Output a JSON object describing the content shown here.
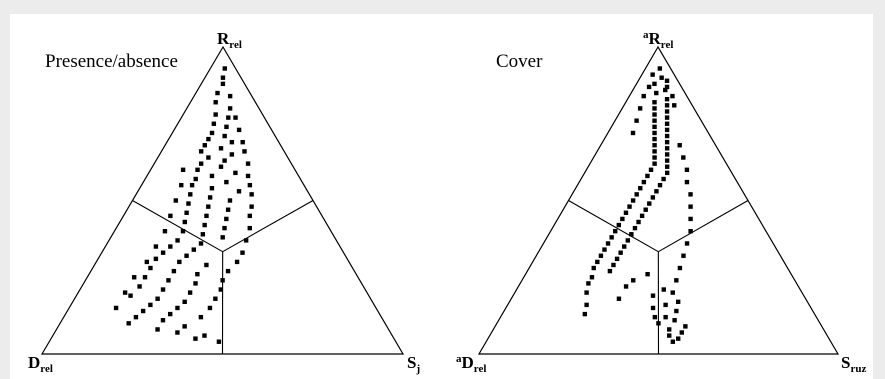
{
  "chart_data": [
    {
      "type": "scatter",
      "subtype": "ternary",
      "title": "Presence/absence",
      "vertices": {
        "top": {
          "main": "R",
          "sub": "rel",
          "sup": ""
        },
        "left": {
          "main": "D",
          "sub": "rel",
          "sup": ""
        },
        "right": {
          "main": "S",
          "sub": "j",
          "sup": ""
        }
      },
      "components_order": [
        "R",
        "D",
        "S"
      ],
      "divisions": "three regions split at the centroid, each boundary perpendicular to an edge",
      "points": [
        [
          0.93,
          0.03,
          0.04
        ],
        [
          0.9,
          0.05,
          0.05
        ],
        [
          0.88,
          0.06,
          0.06
        ],
        [
          0.85,
          0.09,
          0.06
        ],
        [
          0.84,
          0.06,
          0.1
        ],
        [
          0.82,
          0.11,
          0.07
        ],
        [
          0.8,
          0.08,
          0.12
        ],
        [
          0.78,
          0.13,
          0.09
        ],
        [
          0.77,
          0.1,
          0.13
        ],
        [
          0.75,
          0.15,
          0.1
        ],
        [
          0.74,
          0.12,
          0.14
        ],
        [
          0.72,
          0.17,
          0.11
        ],
        [
          0.71,
          0.14,
          0.15
        ],
        [
          0.7,
          0.19,
          0.11
        ],
        [
          0.69,
          0.13,
          0.18
        ],
        [
          0.68,
          0.21,
          0.11
        ],
        [
          0.67,
          0.17,
          0.16
        ],
        [
          0.66,
          0.23,
          0.11
        ],
        [
          0.65,
          0.15,
          0.2
        ],
        [
          0.64,
          0.22,
          0.14
        ],
        [
          0.63,
          0.18,
          0.19
        ],
        [
          0.62,
          0.25,
          0.13
        ],
        [
          0.61,
          0.2,
          0.19
        ],
        [
          0.6,
          0.27,
          0.13
        ],
        [
          0.59,
          0.17,
          0.24
        ],
        [
          0.58,
          0.24,
          0.18
        ],
        [
          0.57,
          0.29,
          0.14
        ],
        [
          0.56,
          0.21,
          0.23
        ],
        [
          0.55,
          0.31,
          0.14
        ],
        [
          0.54,
          0.26,
          0.2
        ],
        [
          0.53,
          0.19,
          0.28
        ],
        [
          0.52,
          0.33,
          0.15
        ],
        [
          0.51,
          0.28,
          0.21
        ],
        [
          0.5,
          0.23,
          0.27
        ],
        [
          0.49,
          0.35,
          0.16
        ],
        [
          0.48,
          0.3,
          0.22
        ],
        [
          0.47,
          0.25,
          0.28
        ],
        [
          0.46,
          0.37,
          0.17
        ],
        [
          0.45,
          0.32,
          0.23
        ],
        [
          0.44,
          0.27,
          0.29
        ],
        [
          0.43,
          0.39,
          0.18
        ],
        [
          0.42,
          0.34,
          0.24
        ],
        [
          0.41,
          0.29,
          0.3
        ],
        [
          0.4,
          0.41,
          0.19
        ],
        [
          0.39,
          0.36,
          0.25
        ],
        [
          0.38,
          0.31,
          0.31
        ],
        [
          0.37,
          0.44,
          0.19
        ],
        [
          0.36,
          0.38,
          0.26
        ],
        [
          0.35,
          0.47,
          0.18
        ],
        [
          0.34,
          0.41,
          0.25
        ],
        [
          0.33,
          0.5,
          0.17
        ],
        [
          0.32,
          0.44,
          0.24
        ],
        [
          0.31,
          0.53,
          0.16
        ],
        [
          0.3,
          0.47,
          0.23
        ],
        [
          0.29,
          0.4,
          0.31
        ],
        [
          0.28,
          0.56,
          0.16
        ],
        [
          0.27,
          0.5,
          0.23
        ],
        [
          0.26,
          0.44,
          0.3
        ],
        [
          0.25,
          0.59,
          0.16
        ],
        [
          0.24,
          0.53,
          0.23
        ],
        [
          0.23,
          0.46,
          0.31
        ],
        [
          0.22,
          0.62,
          0.16
        ],
        [
          0.21,
          0.56,
          0.23
        ],
        [
          0.2,
          0.49,
          0.31
        ],
        [
          0.19,
          0.66,
          0.15
        ],
        [
          0.18,
          0.59,
          0.23
        ],
        [
          0.17,
          0.52,
          0.31
        ],
        [
          0.16,
          0.62,
          0.22
        ],
        [
          0.15,
          0.55,
          0.3
        ],
        [
          0.14,
          0.65,
          0.21
        ],
        [
          0.13,
          0.58,
          0.29
        ],
        [
          0.12,
          0.68,
          0.2
        ],
        [
          0.11,
          0.61,
          0.28
        ],
        [
          0.1,
          0.71,
          0.19
        ],
        [
          0.09,
          0.56,
          0.35
        ],
        [
          0.08,
          0.64,
          0.28
        ],
        [
          0.07,
          0.59,
          0.34
        ],
        [
          0.06,
          0.52,
          0.42
        ],
        [
          0.05,
          0.55,
          0.4
        ],
        [
          0.04,
          0.49,
          0.47
        ],
        [
          0.77,
          0.08,
          0.15
        ],
        [
          0.73,
          0.09,
          0.18
        ],
        [
          0.69,
          0.1,
          0.21
        ],
        [
          0.66,
          0.11,
          0.23
        ],
        [
          0.62,
          0.12,
          0.26
        ],
        [
          0.58,
          0.14,
          0.28
        ],
        [
          0.55,
          0.15,
          0.3
        ],
        [
          0.52,
          0.16,
          0.32
        ],
        [
          0.48,
          0.18,
          0.34
        ],
        [
          0.45,
          0.2,
          0.35
        ],
        [
          0.41,
          0.22,
          0.37
        ],
        [
          0.37,
          0.25,
          0.38
        ],
        [
          0.33,
          0.28,
          0.39
        ],
        [
          0.3,
          0.31,
          0.39
        ],
        [
          0.27,
          0.35,
          0.38
        ],
        [
          0.24,
          0.38,
          0.38
        ],
        [
          0.21,
          0.4,
          0.39
        ],
        [
          0.18,
          0.43,
          0.39
        ],
        [
          0.15,
          0.46,
          0.39
        ],
        [
          0.12,
          0.5,
          0.38
        ],
        [
          0.6,
          0.31,
          0.09
        ],
        [
          0.55,
          0.34,
          0.11
        ],
        [
          0.5,
          0.38,
          0.12
        ],
        [
          0.45,
          0.42,
          0.13
        ],
        [
          0.4,
          0.46,
          0.14
        ],
        [
          0.35,
          0.51,
          0.14
        ],
        [
          0.3,
          0.56,
          0.14
        ],
        [
          0.25,
          0.62,
          0.13
        ],
        [
          0.2,
          0.67,
          0.13
        ],
        [
          0.15,
          0.72,
          0.13
        ]
      ]
    },
    {
      "type": "scatter",
      "subtype": "ternary",
      "title": "Cover",
      "vertices": {
        "top": {
          "main": "R",
          "sub": "rel",
          "sup": "a"
        },
        "left": {
          "main": "D",
          "sub": "rel",
          "sup": "a"
        },
        "right": {
          "main": "S",
          "sub": "ruz",
          "sup": ""
        }
      },
      "components_order": [
        "R",
        "D",
        "S"
      ],
      "divisions": "three regions split at the centroid, each boundary perpendicular to an edge",
      "points": [
        [
          0.93,
          0.03,
          0.04
        ],
        [
          0.9,
          0.04,
          0.06
        ],
        [
          0.88,
          0.07,
          0.05
        ],
        [
          0.86,
          0.05,
          0.09
        ],
        [
          0.85,
          0.08,
          0.07
        ],
        [
          0.83,
          0.06,
          0.11
        ],
        [
          0.82,
          0.1,
          0.08
        ],
        [
          0.81,
          0.07,
          0.12
        ],
        [
          0.8,
          0.11,
          0.09
        ],
        [
          0.79,
          0.08,
          0.13
        ],
        [
          0.78,
          0.12,
          0.1
        ],
        [
          0.77,
          0.09,
          0.14
        ],
        [
          0.76,
          0.13,
          0.11
        ],
        [
          0.75,
          0.1,
          0.15
        ],
        [
          0.74,
          0.14,
          0.12
        ],
        [
          0.73,
          0.11,
          0.16
        ],
        [
          0.72,
          0.15,
          0.13
        ],
        [
          0.71,
          0.12,
          0.17
        ],
        [
          0.7,
          0.16,
          0.14
        ],
        [
          0.69,
          0.13,
          0.18
        ],
        [
          0.68,
          0.17,
          0.15
        ],
        [
          0.67,
          0.14,
          0.19
        ],
        [
          0.66,
          0.18,
          0.16
        ],
        [
          0.65,
          0.15,
          0.2
        ],
        [
          0.64,
          0.19,
          0.17
        ],
        [
          0.63,
          0.16,
          0.21
        ],
        [
          0.62,
          0.2,
          0.18
        ],
        [
          0.61,
          0.17,
          0.22
        ],
        [
          0.6,
          0.22,
          0.18
        ],
        [
          0.59,
          0.18,
          0.23
        ],
        [
          0.58,
          0.24,
          0.18
        ],
        [
          0.57,
          0.2,
          0.23
        ],
        [
          0.56,
          0.26,
          0.18
        ],
        [
          0.55,
          0.22,
          0.23
        ],
        [
          0.54,
          0.28,
          0.18
        ],
        [
          0.53,
          0.24,
          0.23
        ],
        [
          0.52,
          0.3,
          0.18
        ],
        [
          0.51,
          0.26,
          0.23
        ],
        [
          0.5,
          0.32,
          0.18
        ],
        [
          0.49,
          0.28,
          0.23
        ],
        [
          0.48,
          0.34,
          0.18
        ],
        [
          0.47,
          0.3,
          0.23
        ],
        [
          0.46,
          0.36,
          0.18
        ],
        [
          0.45,
          0.32,
          0.23
        ],
        [
          0.44,
          0.38,
          0.18
        ],
        [
          0.43,
          0.34,
          0.23
        ],
        [
          0.42,
          0.4,
          0.18
        ],
        [
          0.41,
          0.36,
          0.23
        ],
        [
          0.4,
          0.42,
          0.18
        ],
        [
          0.39,
          0.38,
          0.23
        ],
        [
          0.38,
          0.44,
          0.18
        ],
        [
          0.37,
          0.4,
          0.23
        ],
        [
          0.36,
          0.46,
          0.18
        ],
        [
          0.35,
          0.42,
          0.23
        ],
        [
          0.34,
          0.48,
          0.18
        ],
        [
          0.33,
          0.44,
          0.23
        ],
        [
          0.32,
          0.5,
          0.18
        ],
        [
          0.31,
          0.46,
          0.23
        ],
        [
          0.3,
          0.52,
          0.18
        ],
        [
          0.29,
          0.48,
          0.23
        ],
        [
          0.28,
          0.54,
          0.18
        ],
        [
          0.27,
          0.5,
          0.23
        ],
        [
          0.26,
          0.4,
          0.34
        ],
        [
          0.25,
          0.56,
          0.19
        ],
        [
          0.24,
          0.45,
          0.31
        ],
        [
          0.23,
          0.58,
          0.19
        ],
        [
          0.22,
          0.48,
          0.3
        ],
        [
          0.21,
          0.38,
          0.41
        ],
        [
          0.2,
          0.6,
          0.2
        ],
        [
          0.19,
          0.42,
          0.39
        ],
        [
          0.18,
          0.52,
          0.3
        ],
        [
          0.17,
          0.36,
          0.47
        ],
        [
          0.16,
          0.62,
          0.22
        ],
        [
          0.15,
          0.44,
          0.41
        ],
        [
          0.14,
          0.38,
          0.48
        ],
        [
          0.13,
          0.64,
          0.23
        ],
        [
          0.12,
          0.42,
          0.46
        ],
        [
          0.11,
          0.4,
          0.49
        ],
        [
          0.1,
          0.45,
          0.45
        ],
        [
          0.09,
          0.38,
          0.53
        ],
        [
          0.08,
          0.43,
          0.49
        ],
        [
          0.07,
          0.4,
          0.53
        ],
        [
          0.06,
          0.44,
          0.5
        ],
        [
          0.05,
          0.42,
          0.53
        ],
        [
          0.04,
          0.44,
          0.52
        ],
        [
          0.68,
          0.1,
          0.22
        ],
        [
          0.64,
          0.11,
          0.25
        ],
        [
          0.6,
          0.12,
          0.28
        ],
        [
          0.56,
          0.14,
          0.3
        ],
        [
          0.52,
          0.15,
          0.33
        ],
        [
          0.48,
          0.17,
          0.35
        ],
        [
          0.44,
          0.19,
          0.37
        ],
        [
          0.4,
          0.21,
          0.39
        ],
        [
          0.36,
          0.24,
          0.4
        ],
        [
          0.32,
          0.27,
          0.41
        ],
        [
          0.28,
          0.3,
          0.42
        ],
        [
          0.24,
          0.33,
          0.43
        ],
        [
          0.2,
          0.36,
          0.44
        ],
        [
          0.16,
          0.4,
          0.44
        ],
        [
          0.12,
          0.45,
          0.43
        ],
        [
          0.87,
          0.09,
          0.04
        ],
        [
          0.84,
          0.12,
          0.04
        ],
        [
          0.8,
          0.15,
          0.05
        ],
        [
          0.76,
          0.18,
          0.06
        ],
        [
          0.72,
          0.21,
          0.07
        ],
        [
          0.91,
          0.06,
          0.03
        ],
        [
          0.89,
          0.03,
          0.08
        ],
        [
          0.87,
          0.04,
          0.09
        ],
        [
          0.84,
          0.04,
          0.12
        ],
        [
          0.81,
          0.05,
          0.14
        ]
      ]
    }
  ]
}
